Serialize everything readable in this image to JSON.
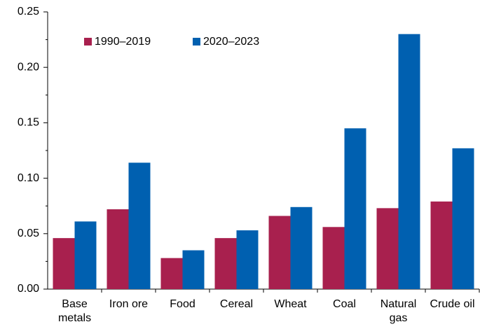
{
  "chart_data": {
    "type": "bar",
    "categories": [
      "Base\nmetals",
      "Iron ore",
      "Food",
      "Cereal",
      "Wheat",
      "Coal",
      "Natural\ngas",
      "Crude oil"
    ],
    "series": [
      {
        "name": "1990–2019",
        "color": "#a8204e",
        "values": [
          0.046,
          0.072,
          0.028,
          0.046,
          0.066,
          0.056,
          0.073,
          0.079
        ]
      },
      {
        "name": "2020–2023",
        "color": "#0060b0",
        "values": [
          0.061,
          0.114,
          0.035,
          0.053,
          0.074,
          0.145,
          0.23,
          0.127
        ]
      }
    ],
    "ylim": [
      0,
      0.25
    ],
    "yticks": [
      {
        "value": 0,
        "label": "0.00"
      },
      0.05,
      {
        "value": 0.1,
        "label": "0.10"
      },
      0.15,
      {
        "value": 0.2,
        "label": "0.20"
      },
      0.25
    ],
    "legend": "top-left"
  }
}
